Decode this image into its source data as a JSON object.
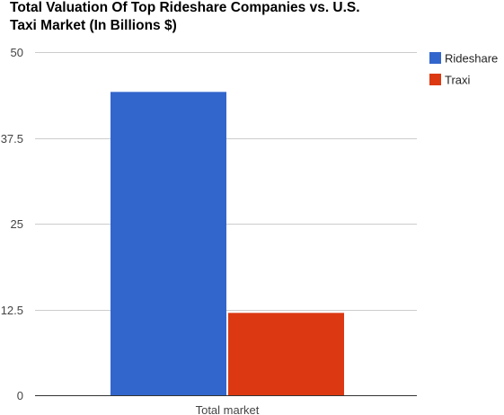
{
  "chart_data": {
    "type": "bar",
    "title": "Total Valuation Of Top Rideshare Companies vs. U.S. Taxi Market (In Billions $)",
    "title_lines": [
      "Total Valuation Of Top Rideshare Companies vs. U.S.",
      "Taxi Market (In Billions $)"
    ],
    "categories": [
      "Total market"
    ],
    "series": [
      {
        "name": "Rideshare",
        "values": [
          44.2
        ],
        "color": "#3366cc"
      },
      {
        "name": "Traxi",
        "values": [
          12
        ],
        "color": "#dc3912"
      }
    ],
    "ylim": [
      0,
      50
    ],
    "yticks": [
      0,
      12.5,
      25,
      37.5,
      50
    ],
    "ytick_labels": [
      "0",
      "12.5",
      "25",
      "37.5",
      "50"
    ],
    "xlabel": "",
    "ylabel": "",
    "grid": true,
    "legend": "right",
    "colors": {
      "grid": "#cccccc",
      "axis": "#333333"
    }
  }
}
